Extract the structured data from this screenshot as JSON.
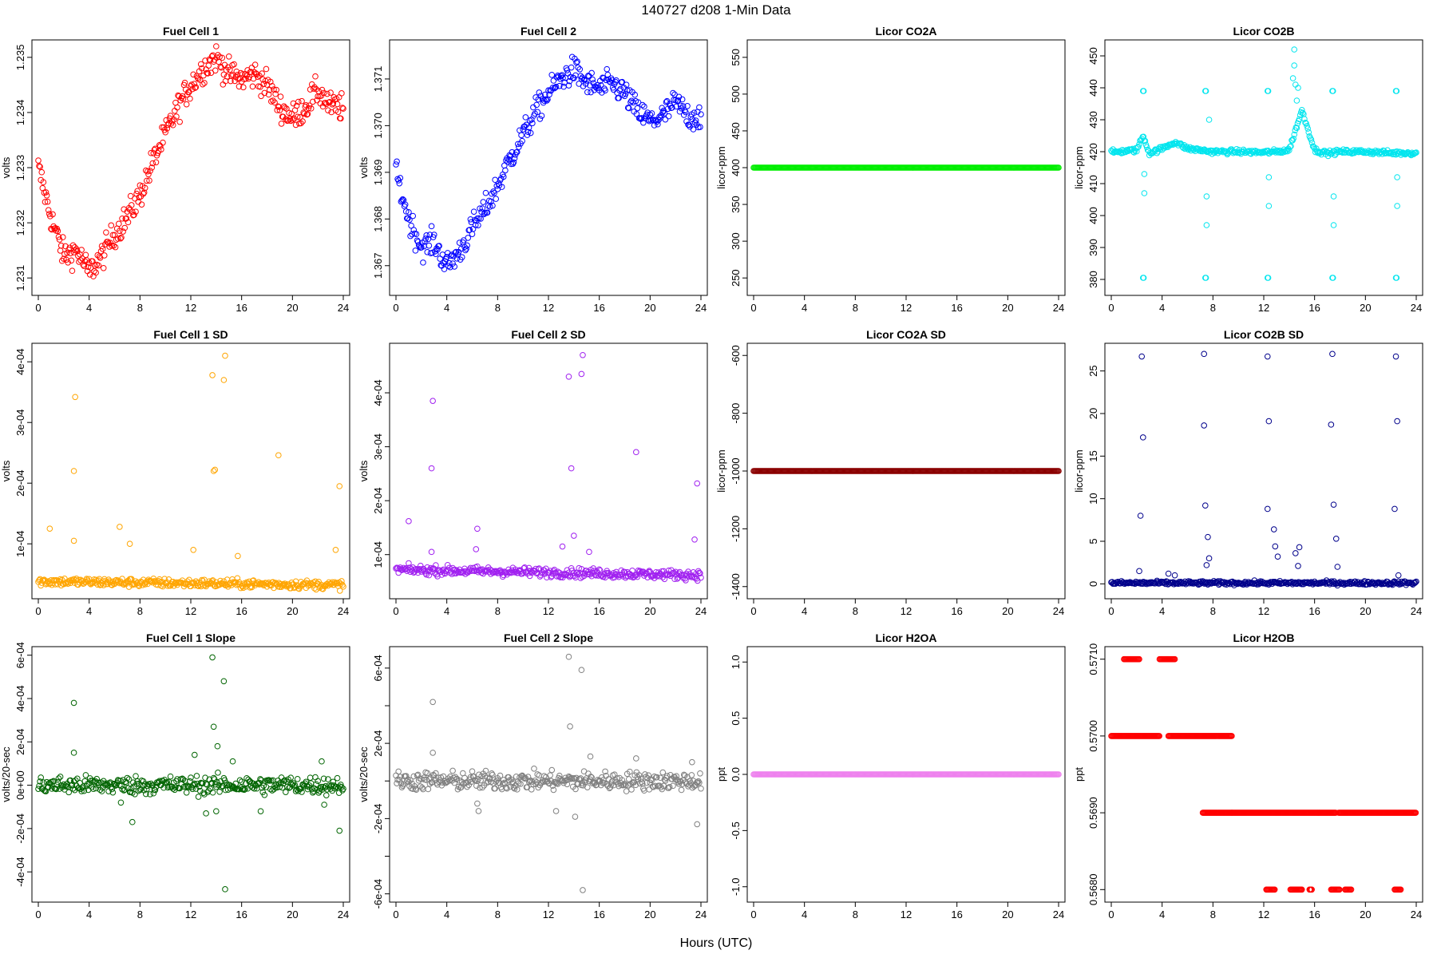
{
  "page": {
    "title": "140727   d208   1-Min Data",
    "xlabel": "Hours (UTC)"
  },
  "chart_data": [
    {
      "id": "fc1",
      "type": "scatter",
      "title": "Fuel Cell 1",
      "ylabel": "volts",
      "color": "#ff0000",
      "ylim": [
        1.2308,
        1.2352
      ],
      "yticks": [
        1.231,
        1.232,
        1.233,
        1.234,
        1.235
      ],
      "ytick_labels": [
        "1.231",
        "1.232",
        "1.233",
        "1.234",
        "1.235"
      ],
      "xlim": [
        0,
        24
      ],
      "xticks": [
        0,
        4,
        8,
        12,
        16,
        20,
        24
      ],
      "series": [
        {
          "x": [
            0,
            1,
            2,
            3,
            4,
            5,
            6,
            7,
            8,
            9,
            10,
            11,
            12,
            13,
            14,
            15,
            16,
            17,
            18,
            19,
            20,
            21,
            22,
            23,
            24
          ],
          "y": [
            1.233,
            1.2321,
            1.2314,
            1.2315,
            1.2311,
            1.2314,
            1.2318,
            1.2321,
            1.2325,
            1.2331,
            1.2336,
            1.2341,
            1.2345,
            1.2348,
            1.235,
            1.2347,
            1.2346,
            1.2347,
            1.2345,
            1.2341,
            1.2339,
            1.2341,
            1.2344,
            1.2341,
            1.2341
          ]
        }
      ],
      "noise": 0.00018,
      "outliers": []
    },
    {
      "id": "fc2",
      "type": "scatter",
      "title": "Fuel Cell 2",
      "ylabel": "volts",
      "color": "#0000ff",
      "ylim": [
        1.3665,
        1.3717
      ],
      "yticks": [
        1.367,
        1.368,
        1.369,
        1.37,
        1.371
      ],
      "ytick_labels": [
        "1.367",
        "1.368",
        "1.369",
        "1.370",
        "1.371"
      ],
      "xlim": [
        0,
        24
      ],
      "xticks": [
        0,
        4,
        8,
        12,
        16,
        20,
        24
      ],
      "series": [
        {
          "x": [
            0,
            1,
            2,
            3,
            4,
            5,
            6,
            7,
            8,
            9,
            10,
            11,
            12,
            13,
            14,
            15,
            16,
            17,
            18,
            19,
            20,
            21,
            22,
            23,
            24
          ],
          "y": [
            1.369,
            1.368,
            1.3674,
            1.3675,
            1.367,
            1.3673,
            1.3678,
            1.3682,
            1.3687,
            1.3693,
            1.3698,
            1.3703,
            1.3707,
            1.371,
            1.3712,
            1.3709,
            1.3708,
            1.3709,
            1.3707,
            1.3703,
            1.3701,
            1.3702,
            1.3705,
            1.3702,
            1.3702
          ]
        }
      ],
      "noise": 0.0002,
      "outliers": []
    },
    {
      "id": "co2a",
      "type": "scatter",
      "title": "Licor CO2A",
      "ylabel": "licor-ppm",
      "color": "#00ee00",
      "ylim": [
        235,
        565
      ],
      "yticks": [
        250,
        300,
        350,
        400,
        450,
        500,
        550
      ],
      "ytick_labels": [
        "250",
        "300",
        "350",
        "400",
        "450",
        "500",
        "550"
      ],
      "xlim": [
        0,
        24
      ],
      "xticks": [
        0,
        4,
        8,
        12,
        16,
        20,
        24
      ],
      "series": [
        {
          "x": [
            0,
            24
          ],
          "y": [
            400,
            400
          ]
        }
      ],
      "noise": 0,
      "outliers": []
    },
    {
      "id": "co2b",
      "type": "scatter",
      "title": "Licor CO2B",
      "ylabel": "licor-ppm",
      "color": "#00e5ee",
      "ylim": [
        377,
        453
      ],
      "yticks": [
        380,
        390,
        400,
        410,
        420,
        430,
        440,
        450
      ],
      "ytick_labels": [
        "380",
        "390",
        "400",
        "410",
        "420",
        "430",
        "440",
        "450"
      ],
      "xlim": [
        0,
        24
      ],
      "xticks": [
        0,
        4,
        8,
        12,
        16,
        20,
        24
      ],
      "series": [
        {
          "x": [
            0,
            2,
            2.5,
            3,
            4,
            5,
            6,
            7,
            8,
            10,
            12,
            13,
            14,
            15,
            16,
            17,
            18,
            20,
            22,
            24
          ],
          "y": [
            419.8,
            420.5,
            425,
            419.5,
            421,
            423,
            421,
            420.5,
            420,
            420,
            419.8,
            420,
            420.5,
            433,
            420.5,
            419.5,
            420,
            420,
            419.6,
            419.6
          ]
        }
      ],
      "noise": 0.5,
      "outliers": [
        [
          2.5,
          439
        ],
        [
          2.55,
          439
        ],
        [
          2.5,
          380.5
        ],
        [
          2.55,
          380.5
        ],
        [
          2.6,
          407
        ],
        [
          2.6,
          413
        ],
        [
          7.4,
          439
        ],
        [
          7.45,
          439
        ],
        [
          7.4,
          380.5
        ],
        [
          7.45,
          380.5
        ],
        [
          7.5,
          397
        ],
        [
          7.5,
          406
        ],
        [
          7.7,
          430
        ],
        [
          12.3,
          439
        ],
        [
          12.35,
          439
        ],
        [
          12.3,
          380.5
        ],
        [
          12.35,
          380.5
        ],
        [
          12.4,
          403
        ],
        [
          12.4,
          412
        ],
        [
          14.4,
          452
        ],
        [
          14.4,
          447
        ],
        [
          14.5,
          441
        ],
        [
          14.6,
          436
        ],
        [
          14.7,
          440
        ],
        [
          14.3,
          443
        ],
        [
          17.4,
          439
        ],
        [
          17.45,
          439
        ],
        [
          17.4,
          380.5
        ],
        [
          17.45,
          380.5
        ],
        [
          17.5,
          397
        ],
        [
          17.5,
          406
        ],
        [
          22.4,
          439
        ],
        [
          22.45,
          439
        ],
        [
          22.4,
          380.5
        ],
        [
          22.45,
          380.5
        ],
        [
          22.5,
          403
        ],
        [
          22.5,
          412
        ]
      ]
    },
    {
      "id": "fc1sd",
      "type": "scatter",
      "title": "Fuel Cell 1 SD",
      "ylabel": "volts",
      "color": "#ffa500",
      "ylim": [
        2e-05,
        0.00042
      ],
      "yticks": [
        0.0001,
        0.0002,
        0.0003,
        0.0004
      ],
      "ytick_labels": [
        "1e-04",
        "2e-04",
        "3e-04",
        "4e-04"
      ],
      "xlim": [
        0,
        24
      ],
      "xticks": [
        0,
        4,
        8,
        12,
        16,
        20,
        24
      ],
      "series": [
        {
          "x": [
            0,
            24
          ],
          "y": [
            3.8e-05,
            3.2e-05
          ]
        }
      ],
      "noise": 5e-06,
      "outliers": [
        [
          0.9,
          0.000125
        ],
        [
          2.8,
          0.000105
        ],
        [
          2.8,
          0.00022
        ],
        [
          2.9,
          0.000342
        ],
        [
          6.4,
          0.000128
        ],
        [
          7.2,
          0.0001
        ],
        [
          13.7,
          0.000378
        ],
        [
          13.8,
          0.00022
        ],
        [
          13.9,
          0.000222
        ],
        [
          14.6,
          0.00037
        ],
        [
          14.7,
          0.00041
        ],
        [
          18.9,
          0.000246
        ],
        [
          23.7,
          0.000195
        ],
        [
          23.4,
          9e-05
        ],
        [
          12.2,
          9e-05
        ],
        [
          15.7,
          8e-05
        ]
      ]
    },
    {
      "id": "fc2sd",
      "type": "scatter",
      "title": "Fuel Cell 2 SD",
      "ylabel": "volts",
      "color": "#a020f0",
      "ylim": [
        3e-05,
        0.00048
      ],
      "yticks": [
        0.0001,
        0.0002,
        0.0003,
        0.0004
      ],
      "ytick_labels": [
        "1e-04",
        "2e-04",
        "3e-04",
        "4e-04"
      ],
      "xlim": [
        0,
        24
      ],
      "xticks": [
        0,
        4,
        8,
        12,
        16,
        20,
        24
      ],
      "series": [
        {
          "x": [
            0,
            24
          ],
          "y": [
            7.2e-05,
            6.2e-05
          ]
        }
      ],
      "noise": 6e-06,
      "outliers": [
        [
          1.0,
          0.000162
        ],
        [
          2.8,
          0.000105
        ],
        [
          2.8,
          0.00026
        ],
        [
          2.9,
          0.000385
        ],
        [
          6.4,
          0.000148
        ],
        [
          6.3,
          0.00011
        ],
        [
          13.6,
          0.00043
        ],
        [
          13.8,
          0.00026
        ],
        [
          14.6,
          0.000435
        ],
        [
          14.7,
          0.00047
        ],
        [
          15.2,
          0.000105
        ],
        [
          18.9,
          0.00029
        ],
        [
          23.7,
          0.000232
        ],
        [
          23.5,
          0.000128
        ],
        [
          14.0,
          0.000135
        ],
        [
          13.1,
          0.000115
        ]
      ]
    },
    {
      "id": "co2asd",
      "type": "scatter",
      "title": "Licor CO2A SD",
      "ylabel": "licor-ppm",
      "color": "#8b0000",
      "ylim": [
        -1420,
        -580
      ],
      "yticks": [
        -1400,
        -1200,
        -1000,
        -800,
        -600
      ],
      "ytick_labels": [
        "-1400",
        "-1200",
        "-1000",
        "-800",
        "-600"
      ],
      "xlim": [
        0,
        24
      ],
      "xticks": [
        0,
        4,
        8,
        12,
        16,
        20,
        24
      ],
      "series": [
        {
          "x": [
            0,
            24
          ],
          "y": [
            -1000,
            -1000
          ]
        }
      ],
      "noise": 0,
      "outliers": []
    },
    {
      "id": "co2bsd",
      "type": "scatter",
      "title": "Licor CO2B SD",
      "ylabel": "licor-ppm",
      "color": "#00008b",
      "ylim": [
        -1,
        27.5
      ],
      "yticks": [
        0,
        5,
        10,
        15,
        20,
        25
      ],
      "ytick_labels": [
        "0",
        "5",
        "10",
        "15",
        "20",
        "25"
      ],
      "xlim": [
        0,
        24
      ],
      "xticks": [
        0,
        4,
        8,
        12,
        16,
        20,
        24
      ],
      "series": [
        {
          "x": [
            0,
            24
          ],
          "y": [
            0.1,
            0.1
          ]
        }
      ],
      "noise": 0.15,
      "outliers": [
        [
          2.4,
          26.7
        ],
        [
          2.5,
          17.2
        ],
        [
          2.3,
          8.0
        ],
        [
          2.2,
          1.5
        ],
        [
          4.5,
          1.2
        ],
        [
          5.0,
          1.0
        ],
        [
          7.3,
          27.0
        ],
        [
          7.3,
          18.6
        ],
        [
          7.4,
          9.2
        ],
        [
          7.6,
          5.5
        ],
        [
          7.7,
          3.0
        ],
        [
          7.5,
          2.2
        ],
        [
          12.3,
          26.7
        ],
        [
          12.4,
          19.1
        ],
        [
          12.3,
          8.8
        ],
        [
          12.8,
          6.4
        ],
        [
          12.9,
          4.4
        ],
        [
          13.1,
          3.2
        ],
        [
          14.5,
          3.6
        ],
        [
          14.8,
          4.3
        ],
        [
          14.7,
          2.1
        ],
        [
          17.4,
          27.0
        ],
        [
          17.3,
          18.7
        ],
        [
          17.5,
          9.3
        ],
        [
          17.7,
          5.3
        ],
        [
          17.8,
          2.0
        ],
        [
          22.4,
          26.7
        ],
        [
          22.5,
          19.1
        ],
        [
          22.3,
          8.8
        ],
        [
          22.6,
          1.0
        ]
      ]
    },
    {
      "id": "fc1slope",
      "type": "scatter",
      "title": "Fuel Cell 1 Slope",
      "ylabel": "volts/20-sec",
      "color": "#006400",
      "ylim": [
        -0.00051,
        0.00061
      ],
      "yticks": [
        -0.0004,
        -0.0002,
        0,
        0.0002,
        0.0004,
        0.0006
      ],
      "ytick_labels": [
        "-4e-04",
        "-2e-04",
        "0e+00",
        "2e-04",
        "4e-04",
        "6e-04"
      ],
      "xlim": [
        0,
        24
      ],
      "xticks": [
        0,
        4,
        8,
        12,
        16,
        20,
        24
      ],
      "series": [
        {
          "x": [
            0,
            24
          ],
          "y": [
            0,
            0
          ]
        }
      ],
      "noise": 3e-05,
      "outliers": [
        [
          2.8,
          0.00038
        ],
        [
          2.8,
          0.00015
        ],
        [
          6.5,
          -8e-05
        ],
        [
          7.4,
          -0.00017
        ],
        [
          12.3,
          0.00014
        ],
        [
          13.2,
          -0.00013
        ],
        [
          13.7,
          0.00059
        ],
        [
          13.8,
          0.00027
        ],
        [
          14.0,
          -0.00012
        ],
        [
          14.1,
          0.00018
        ],
        [
          14.6,
          0.00048
        ],
        [
          14.7,
          -0.00048
        ],
        [
          15.3,
          0.00011
        ],
        [
          17.5,
          -0.00012
        ],
        [
          22.3,
          0.00011
        ],
        [
          22.5,
          -9e-05
        ],
        [
          23.7,
          -0.00021
        ]
      ]
    },
    {
      "id": "fc2slope",
      "type": "scatter",
      "title": "Fuel Cell 2 Slope",
      "ylabel": "volts/20-sec",
      "color": "#808080",
      "ylim": [
        -0.00061,
        0.00068
      ],
      "yticks": [
        -0.0006,
        -0.0004,
        -0.0002,
        0,
        0.0002,
        0.0004,
        0.0006
      ],
      "ytick_labels": [
        "-6e-04",
        "",
        "-2e-04",
        "",
        "2e-04",
        "",
        "6e-04"
      ],
      "xlim": [
        0,
        24
      ],
      "xticks": [
        0,
        4,
        8,
        12,
        16,
        20,
        24
      ],
      "series": [
        {
          "x": [
            0,
            24
          ],
          "y": [
            0,
            0
          ]
        }
      ],
      "noise": 3.5e-05,
      "outliers": [
        [
          2.9,
          0.00042
        ],
        [
          2.9,
          0.00015
        ],
        [
          6.4,
          -0.00012
        ],
        [
          6.5,
          -0.00016
        ],
        [
          12.6,
          -0.00016
        ],
        [
          13.6,
          0.00066
        ],
        [
          13.7,
          0.00029
        ],
        [
          14.1,
          -0.00019
        ],
        [
          14.6,
          0.00059
        ],
        [
          14.7,
          -0.00058
        ],
        [
          15.3,
          0.00013
        ],
        [
          18.9,
          0.00012
        ],
        [
          23.7,
          -0.00023
        ],
        [
          23.3,
          0.0001
        ]
      ]
    },
    {
      "id": "h2oa",
      "type": "scatter",
      "title": "Licor H2OA",
      "ylabel": "ppt",
      "color": "#ee82ee",
      "ylim": [
        -1.08,
        1.08
      ],
      "yticks": [
        -1.0,
        -0.5,
        0.0,
        0.5,
        1.0
      ],
      "ytick_labels": [
        "-1.0",
        "-0.5",
        "0.0",
        "0.5",
        "1.0"
      ],
      "xlim": [
        0,
        24
      ],
      "xticks": [
        0,
        4,
        8,
        12,
        16,
        20,
        24
      ],
      "series": [
        {
          "x": [
            0,
            24
          ],
          "y": [
            0,
            0
          ]
        }
      ],
      "noise": 0,
      "outliers": []
    },
    {
      "id": "h2ob",
      "type": "scatter",
      "title": "Licor H2OB",
      "ylabel": "ppt",
      "color": "#ff0000",
      "ylim": [
        0.56792,
        0.57108
      ],
      "yticks": [
        0.568,
        0.569,
        0.57,
        0.571
      ],
      "ytick_labels": [
        "0.5680",
        "0.5690",
        "0.5700",
        "0.5710"
      ],
      "xlim": [
        0,
        24
      ],
      "xticks": [
        0,
        4,
        8,
        12,
        16,
        20,
        24
      ],
      "segments": [
        {
          "x": [
            0.0,
            3.8
          ],
          "y": 0.57
        },
        {
          "x": [
            4.5,
            9.5
          ],
          "y": 0.57
        },
        {
          "x": [
            1.0,
            2.2
          ],
          "y": 0.571
        },
        {
          "x": [
            3.8,
            5.0
          ],
          "y": 0.571
        },
        {
          "x": [
            7.2,
            9.5
          ],
          "y": 0.569
        },
        {
          "x": [
            9.5,
            17.7
          ],
          "y": 0.569
        },
        {
          "x": [
            17.9,
            24.0
          ],
          "y": 0.569
        },
        {
          "x": [
            12.2,
            12.9
          ],
          "y": 0.568
        },
        {
          "x": [
            14.1,
            15.0
          ],
          "y": 0.568
        },
        {
          "x": [
            15.6,
            15.8
          ],
          "y": 0.568
        },
        {
          "x": [
            17.3,
            18.0
          ],
          "y": 0.568
        },
        {
          "x": [
            18.4,
            18.9
          ],
          "y": 0.568
        },
        {
          "x": [
            22.3,
            22.8
          ],
          "y": 0.568
        }
      ]
    }
  ]
}
